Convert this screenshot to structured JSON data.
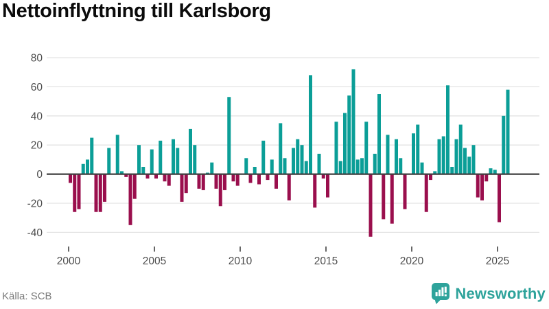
{
  "title": "Nettoinflyttning till Karlsborg",
  "footer": {
    "source": "Källa: SCB",
    "brand": "Newsworthy"
  },
  "icons": {
    "logo_badge": "newsworthy-pin-barchart-icon"
  },
  "chart_data": {
    "type": "bar",
    "title": "Nettoinflyttning till Karlsborg",
    "frequency": "quarterly",
    "start_year": 2000,
    "start_quarter": 1,
    "x_tick_labels": [
      "2000",
      "2005",
      "2010",
      "2015",
      "2020",
      "2025"
    ],
    "y_ticks": [
      80,
      60,
      40,
      20,
      0,
      -20,
      -40
    ],
    "ylim": [
      -45,
      80
    ],
    "grid": true,
    "legend": false,
    "values": [
      -6,
      -26,
      -24,
      7,
      10,
      25,
      -26,
      -26,
      -19,
      18,
      0,
      27,
      2,
      -2,
      -35,
      -17,
      20,
      5,
      -3,
      17,
      -3,
      23,
      -5,
      -8,
      24,
      18,
      -19,
      -13,
      31,
      20,
      -10,
      -11,
      1,
      8,
      -10,
      -22,
      -11,
      53,
      -5,
      -8,
      0,
      11,
      -6,
      5,
      -7,
      23,
      -4,
      10,
      -10,
      35,
      11,
      -18,
      18,
      24,
      20,
      9,
      68,
      -23,
      14,
      -3,
      -16,
      0,
      36,
      9,
      42,
      54,
      72,
      10,
      11,
      36,
      -43,
      14,
      55,
      -31,
      27,
      -34,
      24,
      11,
      -24,
      0,
      28,
      34,
      8,
      -26,
      -4,
      2,
      24,
      26,
      61,
      5,
      24,
      34,
      18,
      12,
      20,
      -16,
      -18,
      -5,
      4,
      3,
      -33,
      40,
      58
    ],
    "colors": {
      "positive": "#0b9e97",
      "negative": "#9a0f4d",
      "gridline": "#e3e3e3",
      "zero_line": "#3f3f3f",
      "axis_text": "#4d4d4d",
      "source_text": "#7b7b7b",
      "brand": "#2ea39b"
    }
  }
}
